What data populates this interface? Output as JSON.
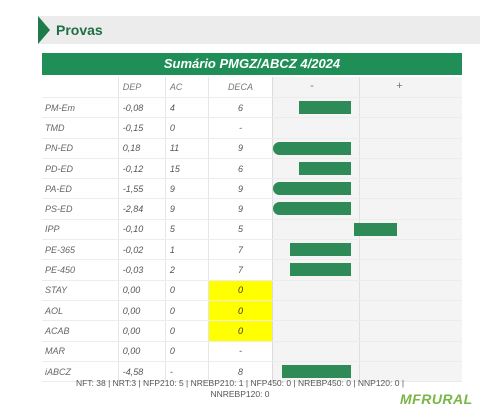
{
  "section_title": "Provas",
  "summary_title": "Sumário PMGZ/ABCZ 4/2024",
  "columns": {
    "dep": "DEP",
    "ac": "AC",
    "deca": "DECA",
    "minus": "-",
    "plus": "+"
  },
  "rows": [
    {
      "label": "PM-Em",
      "dep": "-0,08",
      "ac": "4",
      "deca": "6",
      "bar_start": 0.15,
      "bar_end": 0.45
    },
    {
      "label": "TMD",
      "dep": "-0,15",
      "ac": "0",
      "deca": "-",
      "bar_start": null,
      "bar_end": null
    },
    {
      "label": "PN-ED",
      "dep": "0,18",
      "ac": "11",
      "deca": "9",
      "bar_start": 0.0,
      "bar_end": 0.45
    },
    {
      "label": "PD-ED",
      "dep": "-0,12",
      "ac": "15",
      "deca": "6",
      "bar_start": 0.15,
      "bar_end": 0.45
    },
    {
      "label": "PA-ED",
      "dep": "-1,55",
      "ac": "9",
      "deca": "9",
      "bar_start": 0.0,
      "bar_end": 0.45
    },
    {
      "label": "PS-ED",
      "dep": "-2,84",
      "ac": "9",
      "deca": "9",
      "bar_start": 0.0,
      "bar_end": 0.45
    },
    {
      "label": "IPP",
      "dep": "-0,10",
      "ac": "5",
      "deca": "5",
      "bar_start": 0.47,
      "bar_end": 0.72
    },
    {
      "label": "PE-365",
      "dep": "-0,02",
      "ac": "1",
      "deca": "7",
      "bar_start": 0.1,
      "bar_end": 0.45
    },
    {
      "label": "PE-450",
      "dep": "-0,03",
      "ac": "2",
      "deca": "7",
      "bar_start": 0.1,
      "bar_end": 0.45
    },
    {
      "label": "STAY",
      "dep": "0,00",
      "ac": "0",
      "deca": "0",
      "highlight": true,
      "bar_start": null,
      "bar_end": null
    },
    {
      "label": "AOL",
      "dep": "0,00",
      "ac": "0",
      "deca": "0",
      "highlight": true,
      "bar_start": null,
      "bar_end": null
    },
    {
      "label": "ACAB",
      "dep": "0,00",
      "ac": "0",
      "deca": "0",
      "highlight": true,
      "bar_start": null,
      "bar_end": null
    },
    {
      "label": "MAR",
      "dep": "0,00",
      "ac": "0",
      "deca": "-",
      "bar_start": null,
      "bar_end": null
    },
    {
      "label": "iABCZ",
      "dep": "-4,58",
      "ac": "-",
      "deca": "8",
      "bar_start": 0.05,
      "bar_end": 0.45
    }
  ],
  "footer_text": "NFT: 38 | NRT:3 | NFP210: 5 | NREBP210: 1 | NFP450: 0 | NREBP450: 0 | NNP120: 0 | NNREBP120: 0",
  "logo": {
    "text": "MFRURAL"
  },
  "colors": {
    "accent": "#1f8f57",
    "bar": "#2e8a57",
    "highlight": "#ffff00"
  }
}
